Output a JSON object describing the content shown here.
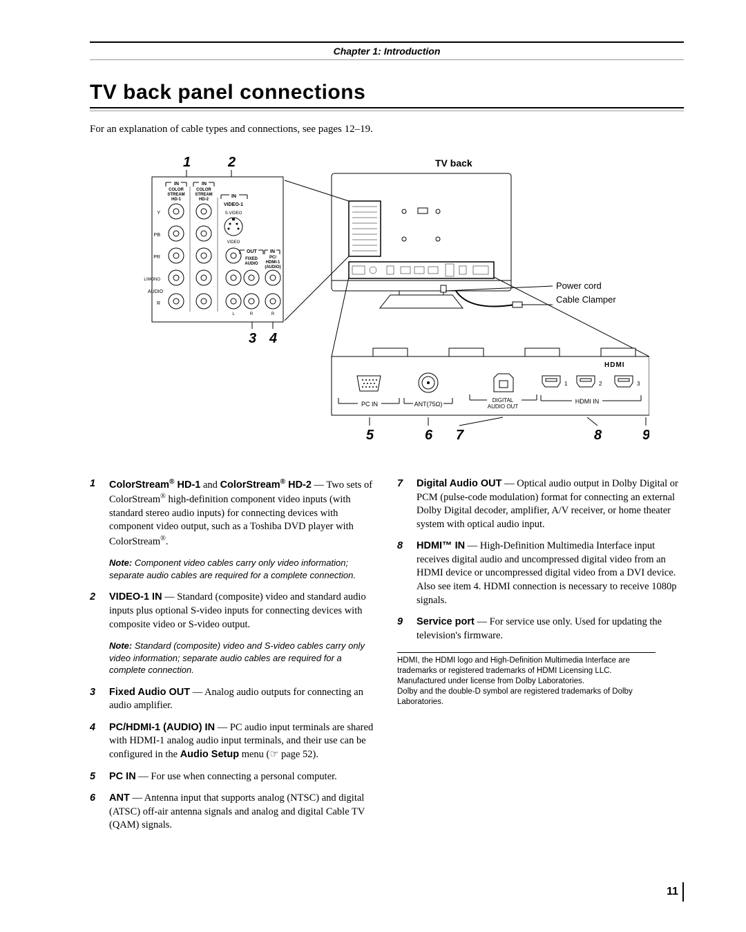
{
  "chapter_header": "Chapter 1: Introduction",
  "title": "TV back panel connections",
  "intro": "For an explanation of cable types and connections, see pages 12–19.",
  "diagram": {
    "tv_back_label": "TV back",
    "power_cord": "Power cord",
    "cable_clamper": "Cable Clamper",
    "callouts": [
      "1",
      "2",
      "3",
      "4",
      "5",
      "6",
      "7",
      "8",
      "9"
    ],
    "panel_labels": {
      "in": "IN",
      "color_stream": "COLOR\nSTREAM",
      "hd1": "HD-1",
      "hd2": "HD-2",
      "video1": "VIDEO-1",
      "svideo": "S-VIDEO",
      "video": "VIDEO",
      "out": "OUT",
      "fixed_audio": "FIXED\nAUDIO",
      "pc_hdmi1_audio": "PC/\nHDMI-1\n(AUDIO)",
      "y": "Y",
      "pb": "PB",
      "pr": "PR",
      "lmono": "L/MONO",
      "audio": "AUDIO",
      "r": "R",
      "l": "L"
    },
    "bottom_labels": {
      "pc_in": "PC IN",
      "ant": "ANT(75Ω)",
      "digital_audio_out": "DIGITAL\nAUDIO OUT",
      "hdmi_in": "HDMI IN",
      "hdmi_logo": "HDMI"
    }
  },
  "left_items": [
    {
      "num": "1",
      "body_html": "<span class='bold'>ColorStream<sup>®</sup> HD-1</span> and <span class='bold'>ColorStream<sup>®</sup> HD-2</span> — Two sets of ColorStream<sup>®</sup> high-definition component video inputs (with standard stereo audio inputs) for connecting devices with component video output, such as a Toshiba DVD player with ColorStream<sup>®</sup>.",
      "note": "Component video cables carry only video information; separate audio cables are required for a complete connection."
    },
    {
      "num": "2",
      "body_html": "<span class='bold'>VIDEO-1 IN</span> — Standard (composite) video and standard audio inputs plus optional S-video inputs for connecting devices with composite video or S-video output.",
      "note": "Standard (composite) video and S-video cables carry only video information; separate audio cables are required for a complete connection."
    },
    {
      "num": "3",
      "body_html": "<span class='bold'>Fixed Audio OUT</span> — Analog audio outputs for connecting an audio amplifier."
    },
    {
      "num": "4",
      "body_html": "<span class='bold'>PC/HDMI-1 (AUDIO) IN</span> — PC audio input terminals are shared with HDMI-1 analog audio input terminals, and their use can be configured in the <span class='bold'>Audio Setup</span> menu (☞ page 52)."
    },
    {
      "num": "5",
      "body_html": "<span class='bold'>PC IN</span> — For use when connecting a personal computer."
    },
    {
      "num": "6",
      "body_html": "<span class='bold'>ANT</span> — Antenna input that supports analog (NTSC) and digital (ATSC) off-air antenna signals and analog and digital Cable TV (QAM) signals."
    }
  ],
  "right_items": [
    {
      "num": "7",
      "body_html": "<span class='bold'>Digital Audio OUT</span> — Optical audio output in Dolby Digital or PCM (pulse-code modulation) format for connecting an external Dolby Digital decoder, amplifier, A/V receiver, or home theater system with optical audio input."
    },
    {
      "num": "8",
      "body_html": "<span class='bold'>HDMI™ IN</span> — High-Definition Multimedia Interface input receives digital audio and uncompressed digital video from an HDMI device or uncompressed digital video from a DVI device. Also see item 4. HDMI connection is necessary to receive 1080p signals."
    },
    {
      "num": "9",
      "body_html": "<span class='bold'>Service port</span> — For service use only. Used for updating the television's firmware."
    }
  ],
  "footnote": "HDMI, the HDMI logo and High-Definition Multimedia Interface are trademarks or registered trademarks of HDMI Licensing LLC.\nManufactured under license from Dolby Laboratories.\nDolby and the double-D symbol are registered trademarks of Dolby Laboratories.",
  "page_number": "11"
}
